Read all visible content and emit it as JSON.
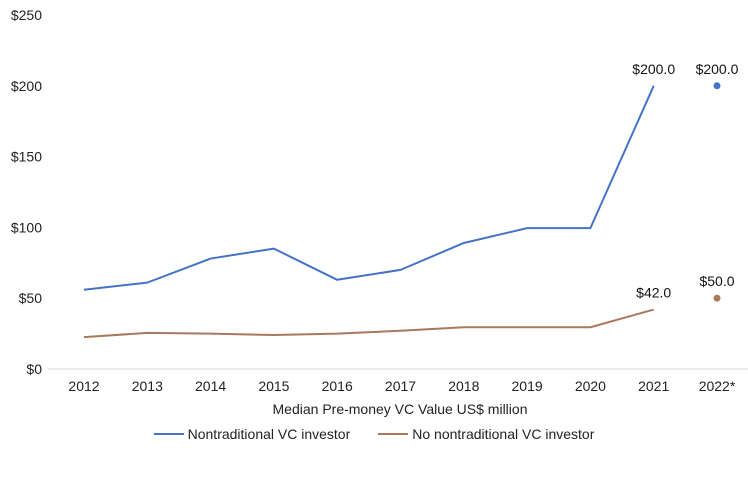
{
  "chart_data": {
    "type": "line",
    "categories": [
      "2012",
      "2013",
      "2014",
      "2015",
      "2016",
      "2017",
      "2018",
      "2019",
      "2020",
      "2021",
      "2022*"
    ],
    "xlabel": "Median Pre-money VC Value US$ million",
    "ylim": [
      0,
      250
    ],
    "yticks": [
      0,
      50,
      100,
      150,
      200,
      250
    ],
    "ytick_labels": [
      "$0",
      "$50",
      "$100",
      "$150",
      "$200",
      "$250"
    ],
    "grid": false,
    "legend_position": "bottom",
    "series": [
      {
        "name": "Nontraditional VC investor",
        "color": "#4472C4",
        "values": [
          56,
          61,
          78,
          85,
          63,
          70,
          89,
          99.5,
          99.5,
          200,
          200
        ],
        "labels": {
          "9": "$200.0",
          "10": "$200.0"
        }
      },
      {
        "name": "No nontraditional VC investor",
        "color": "#A9795B",
        "values": [
          22.5,
          25.5,
          25,
          24,
          25,
          27,
          29.5,
          29.5,
          29.5,
          42,
          50
        ],
        "labels": {
          "9": "$42.0",
          "10": "$50.0"
        }
      }
    ]
  }
}
